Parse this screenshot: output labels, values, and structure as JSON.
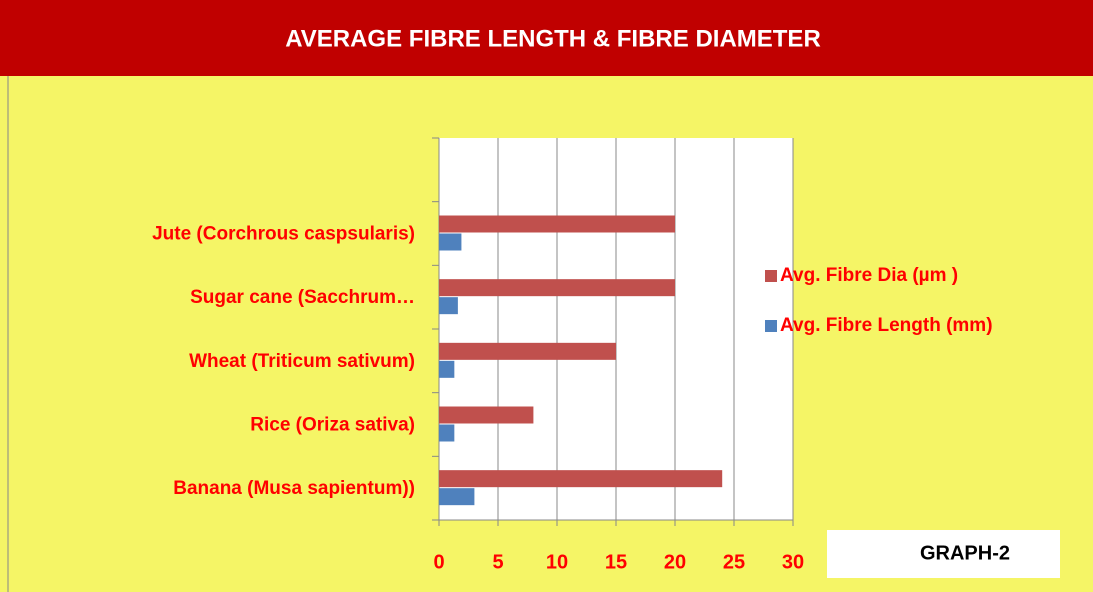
{
  "chart_data": {
    "type": "bar",
    "orientation": "horizontal",
    "title": "AVERAGE FIBRE LENGTH & FIBRE DIAMETER",
    "annotation": "GRAPH-2",
    "categories": [
      "Banana (Musa sapientum))",
      "Rice (Oriza sativa)",
      "Wheat (Triticum sativum)",
      "Sugar cane (Sacchrum…",
      "Jute (Corchrous caspsularis)",
      null
    ],
    "series": [
      {
        "name": "Avg. Fibre Dia (µm )",
        "color": "#c0504d",
        "values": [
          24,
          8,
          15,
          20,
          20,
          null
        ]
      },
      {
        "name": "Avg. Fibre Length (mm)",
        "color": "#4f81bd",
        "values": [
          3,
          1.3,
          1.3,
          1.6,
          1.9,
          null
        ]
      }
    ],
    "xlim": [
      0,
      30
    ],
    "xticks": [
      0,
      5,
      10,
      15,
      20,
      25,
      30
    ],
    "grid": true,
    "legend": "right"
  }
}
